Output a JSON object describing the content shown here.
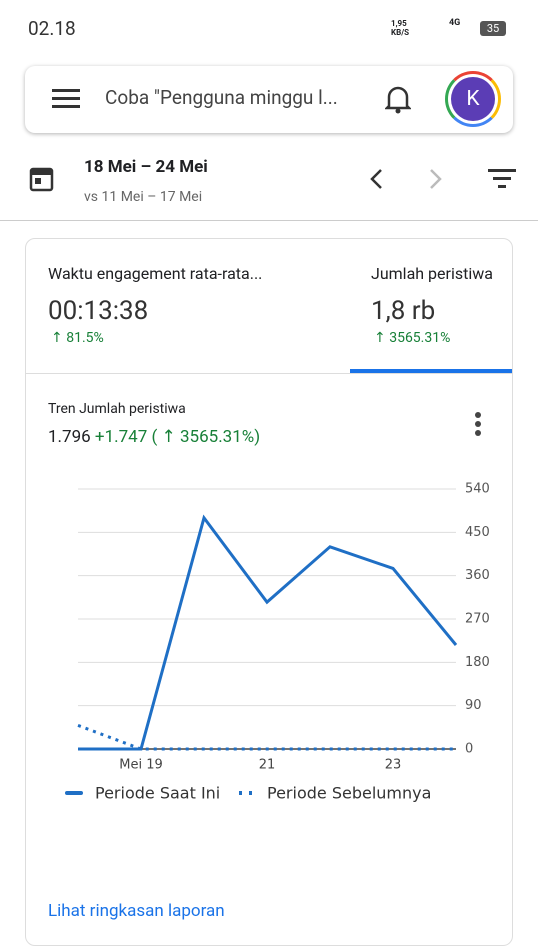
{
  "status_bar": {
    "time": "02.18",
    "net_speed": "1,95",
    "net_unit": "KB/S",
    "network": "4G",
    "battery": "35"
  },
  "search_bar": {
    "placeholder": "Coba \"Pengguna minggu l...",
    "avatar": "K"
  },
  "date_range": {
    "current": "18 Mei – 24 Mei",
    "compare": "vs 11 Mei – 17 Mei"
  },
  "metrics": [
    {
      "label": "Waktu engagement rata-rata...",
      "value": "00:13:38",
      "change": "↑ 81.5%"
    },
    {
      "label": "Jumlah peristiwa",
      "value": "1,8 rb",
      "change": "↑ 3565.31%"
    }
  ],
  "chart_data": {
    "type": "line",
    "title": "Tren Jumlah peristiwa",
    "total": "1.796",
    "delta": "+1.747 ( ↑ 3565.31%)",
    "categories": [
      null,
      "Mei 19",
      null,
      "21",
      null,
      "23",
      null
    ],
    "series": [
      {
        "name": "Periode Saat Ini",
        "color": "#1f6fc5",
        "dash": false,
        "values": [
          0,
          0,
          480,
          305,
          420,
          375,
          216
        ]
      },
      {
        "name": "Periode Sebelumnya",
        "color": "#1f6fc5",
        "dash": true,
        "values": [
          49,
          0,
          0,
          0,
          0,
          0,
          0
        ]
      }
    ],
    "ylim": [
      0,
      540
    ],
    "yticks": [
      0,
      90,
      180,
      270,
      360,
      450,
      540
    ],
    "grid": true
  },
  "footer_link": "Lihat ringkasan laporan"
}
